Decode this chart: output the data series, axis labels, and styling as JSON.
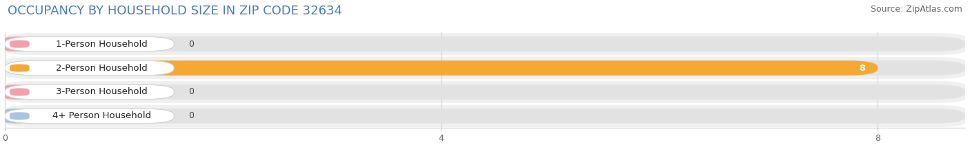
{
  "title": "OCCUPANCY BY HOUSEHOLD SIZE IN ZIP CODE 32634",
  "source_text": "Source: ZipAtlas.com",
  "categories": [
    "1-Person Household",
    "2-Person Household",
    "3-Person Household",
    "4+ Person Household"
  ],
  "values": [
    0,
    8,
    0,
    0
  ],
  "bar_colors": [
    "#f4a0aa",
    "#f5a833",
    "#f4a0aa",
    "#a8c4e0"
  ],
  "xlim_max": 8.8,
  "xticks": [
    0,
    4,
    8
  ],
  "title_fontsize": 13,
  "source_fontsize": 9,
  "bar_label_fontsize": 9,
  "category_fontsize": 9.5,
  "figsize": [
    14.06,
    2.33
  ],
  "dpi": 100,
  "row_bg": "#f0f0f0",
  "bar_bg": "#e2e2e2",
  "label_box_bg": "#ffffff",
  "grid_color": "#cccccc",
  "title_color": "#4a7abf"
}
